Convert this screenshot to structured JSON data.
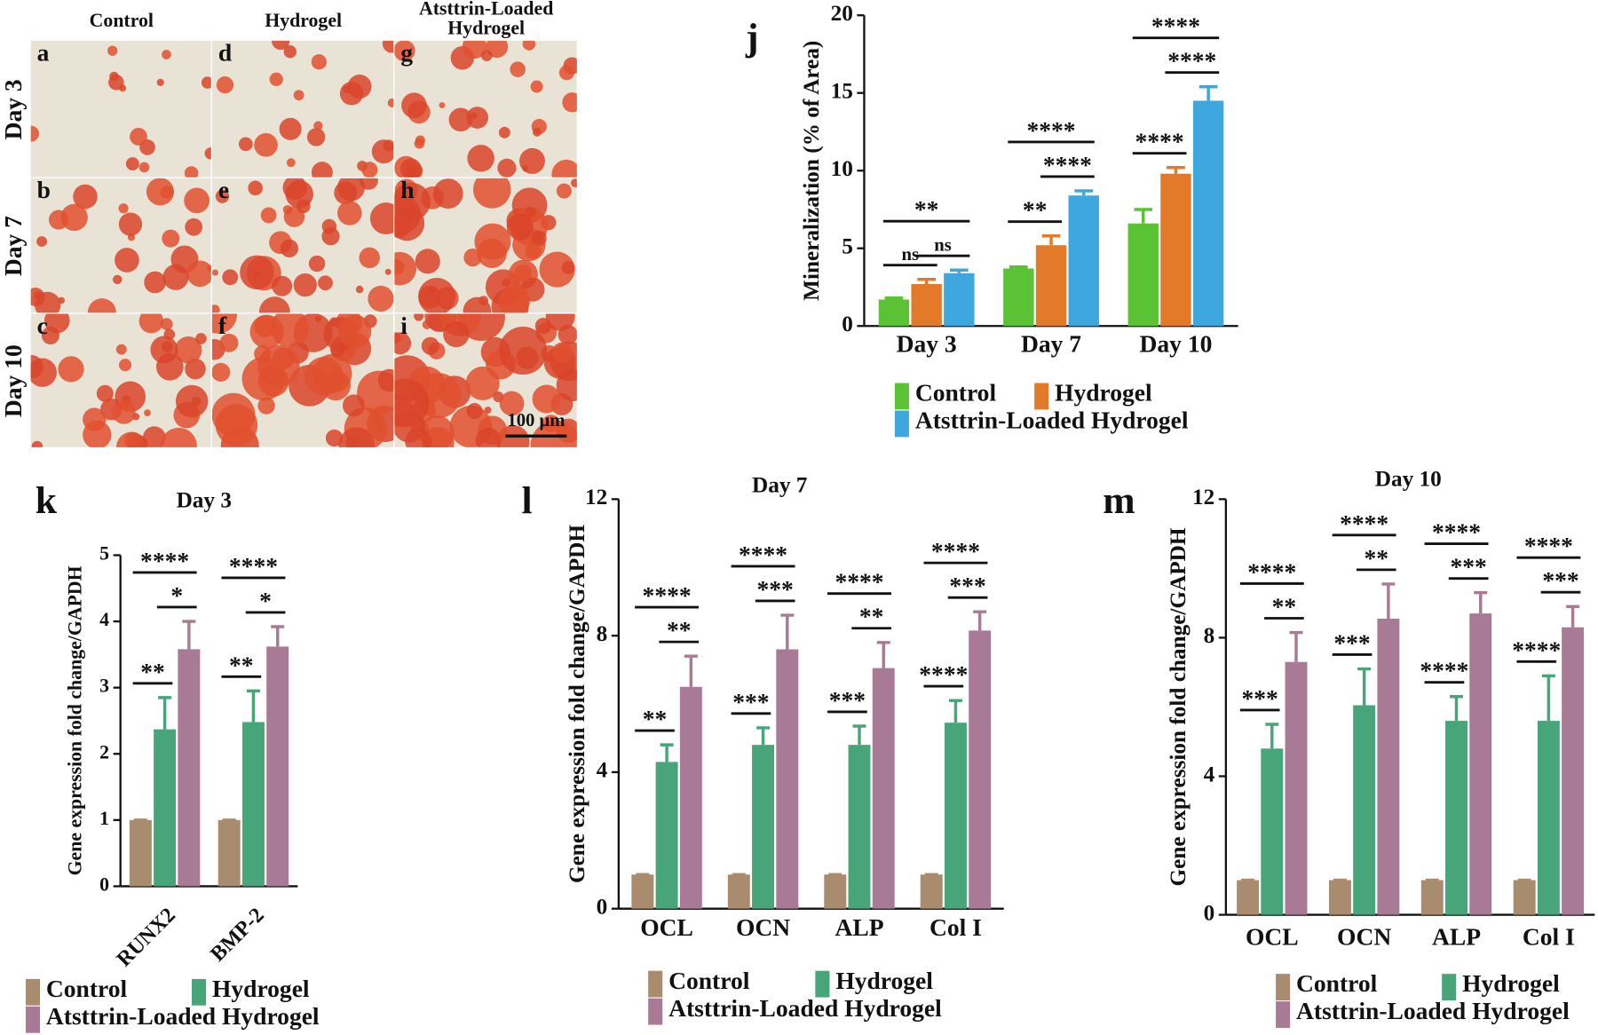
{
  "micrographs": {
    "columns": [
      "Control",
      "Hydrogel",
      "Atsttrin-Loaded Hydrogel"
    ],
    "rows": [
      "Day 3",
      "Day 7",
      "Day 10"
    ],
    "panels": [
      "a",
      "d",
      "g",
      "b",
      "e",
      "h",
      "c",
      "f",
      "i"
    ],
    "scale_bar": "100 μm"
  },
  "chart_data": [
    {
      "type": "bar",
      "panel": "j",
      "ylabel": "Mineralization (% of Area)",
      "categories": [
        "Day 3",
        "Day 7",
        "Day 10"
      ],
      "series": [
        {
          "name": "Control",
          "color": "#5bc236",
          "values": [
            1.7,
            3.7,
            6.6
          ],
          "errors": [
            0.1,
            0.1,
            0.9
          ]
        },
        {
          "name": "Hydrogel",
          "color": "#e27a2a",
          "values": [
            2.7,
            5.2,
            9.8
          ],
          "errors": [
            0.3,
            0.6,
            0.4
          ]
        },
        {
          "name": "Atsttrin-Loaded Hydrogel",
          "color": "#3ea8de",
          "values": [
            3.4,
            8.4,
            14.5
          ],
          "errors": [
            0.2,
            0.3,
            0.9
          ]
        }
      ],
      "ylim": [
        0,
        20
      ],
      "yticks": [
        0,
        5,
        10,
        15,
        20
      ],
      "annotations": [
        {
          "text": "ns",
          "category": 0,
          "pair": [
            0,
            1
          ]
        },
        {
          "text": "ns",
          "category": 0,
          "pair": [
            1,
            2
          ]
        },
        {
          "text": "**",
          "category": 0,
          "pair": [
            0,
            2
          ]
        },
        {
          "text": "**",
          "category": 1,
          "pair": [
            0,
            1
          ]
        },
        {
          "text": "****",
          "category": 1,
          "pair": [
            1,
            2
          ]
        },
        {
          "text": "****",
          "category": 1,
          "pair": [
            0,
            2
          ]
        },
        {
          "text": "****",
          "category": 2,
          "pair": [
            0,
            1
          ]
        },
        {
          "text": "****",
          "category": 2,
          "pair": [
            1,
            2
          ]
        },
        {
          "text": "****",
          "category": 2,
          "pair": [
            0,
            2
          ]
        }
      ]
    },
    {
      "type": "bar",
      "panel": "k",
      "title": "Day 3",
      "ylabel": "Gene expression fold change/GAPDH",
      "categories": [
        "RUNX2",
        "BMP-2"
      ],
      "series": [
        {
          "name": "Control",
          "color": "#a98b6d",
          "values": [
            1,
            1
          ],
          "errors": [
            0,
            0
          ]
        },
        {
          "name": "Hydrogel",
          "color": "#48a57a",
          "values": [
            2.37,
            2.48
          ],
          "errors": [
            0.48,
            0.47
          ]
        },
        {
          "name": "Atsttrin-Loaded Hydrogel",
          "color": "#a87a95",
          "values": [
            3.58,
            3.62
          ],
          "errors": [
            0.42,
            0.3
          ]
        }
      ],
      "ylim": [
        0,
        5
      ],
      "yticks": [
        0,
        1,
        2,
        3,
        4,
        5
      ],
      "annotations": [
        {
          "text": "**",
          "category": 0,
          "pair": [
            0,
            1
          ]
        },
        {
          "text": "*",
          "category": 0,
          "pair": [
            1,
            2
          ]
        },
        {
          "text": "****",
          "category": 0,
          "pair": [
            0,
            2
          ]
        },
        {
          "text": "**",
          "category": 1,
          "pair": [
            0,
            1
          ]
        },
        {
          "text": "*",
          "category": 1,
          "pair": [
            1,
            2
          ]
        },
        {
          "text": "****",
          "category": 1,
          "pair": [
            0,
            2
          ]
        }
      ]
    },
    {
      "type": "bar",
      "panel": "l",
      "title": "Day 7",
      "ylabel": "Gene expression fold change/GAPDH",
      "categories": [
        "OCL",
        "OCN",
        "ALP",
        "Col I"
      ],
      "series": [
        {
          "name": "Control",
          "color": "#a98b6d",
          "values": [
            1,
            1,
            1,
            1
          ],
          "errors": [
            0,
            0,
            0,
            0
          ]
        },
        {
          "name": "Hydrogel",
          "color": "#48a57a",
          "values": [
            4.3,
            4.8,
            4.8,
            5.45
          ],
          "errors": [
            0.5,
            0.5,
            0.55,
            0.65
          ]
        },
        {
          "name": "Atsttrin-Loaded Hydrogel",
          "color": "#a87a95",
          "values": [
            6.5,
            7.6,
            7.05,
            8.15
          ],
          "errors": [
            0.9,
            1.0,
            0.75,
            0.55
          ]
        }
      ],
      "ylim": [
        0,
        12
      ],
      "yticks": [
        0,
        4,
        8,
        12
      ],
      "annotations": [
        {
          "text": "**",
          "category": 0,
          "pair": [
            0,
            1
          ]
        },
        {
          "text": "**",
          "category": 0,
          "pair": [
            1,
            2
          ]
        },
        {
          "text": "****",
          "category": 0,
          "pair": [
            0,
            2
          ]
        },
        {
          "text": "***",
          "category": 1,
          "pair": [
            0,
            1
          ]
        },
        {
          "text": "***",
          "category": 1,
          "pair": [
            1,
            2
          ]
        },
        {
          "text": "****",
          "category": 1,
          "pair": [
            0,
            2
          ]
        },
        {
          "text": "***",
          "category": 2,
          "pair": [
            0,
            1
          ]
        },
        {
          "text": "**",
          "category": 2,
          "pair": [
            1,
            2
          ]
        },
        {
          "text": "****",
          "category": 2,
          "pair": [
            0,
            2
          ]
        },
        {
          "text": "****",
          "category": 3,
          "pair": [
            0,
            1
          ]
        },
        {
          "text": "***",
          "category": 3,
          "pair": [
            1,
            2
          ]
        },
        {
          "text": "****",
          "category": 3,
          "pair": [
            0,
            2
          ]
        }
      ]
    },
    {
      "type": "bar",
      "panel": "m",
      "title": "Day 10",
      "ylabel": "Gene expression fold change/GAPDH",
      "categories": [
        "OCL",
        "OCN",
        "ALP",
        "Col I"
      ],
      "series": [
        {
          "name": "Control",
          "color": "#a98b6d",
          "values": [
            1,
            1,
            1,
            1
          ],
          "errors": [
            0,
            0,
            0,
            0
          ]
        },
        {
          "name": "Hydrogel",
          "color": "#48a57a",
          "values": [
            4.8,
            6.05,
            5.6,
            5.6
          ],
          "errors": [
            0.7,
            1.05,
            0.7,
            1.3
          ]
        },
        {
          "name": "Atsttrin-Loaded Hydrogel",
          "color": "#a87a95",
          "values": [
            7.3,
            8.55,
            8.7,
            8.3
          ],
          "errors": [
            0.85,
            1.0,
            0.6,
            0.6
          ]
        }
      ],
      "ylim": [
        0,
        12
      ],
      "yticks": [
        0,
        4,
        8,
        12
      ],
      "annotations": [
        {
          "text": "***",
          "category": 0,
          "pair": [
            0,
            1
          ]
        },
        {
          "text": "**",
          "category": 0,
          "pair": [
            1,
            2
          ]
        },
        {
          "text": "****",
          "category": 0,
          "pair": [
            0,
            2
          ]
        },
        {
          "text": "***",
          "category": 1,
          "pair": [
            0,
            1
          ]
        },
        {
          "text": "**",
          "category": 1,
          "pair": [
            1,
            2
          ]
        },
        {
          "text": "****",
          "category": 1,
          "pair": [
            0,
            2
          ]
        },
        {
          "text": "****",
          "category": 2,
          "pair": [
            0,
            1
          ]
        },
        {
          "text": "***",
          "category": 2,
          "pair": [
            1,
            2
          ]
        },
        {
          "text": "****",
          "category": 2,
          "pair": [
            0,
            2
          ]
        },
        {
          "text": "****",
          "category": 3,
          "pair": [
            0,
            1
          ]
        },
        {
          "text": "***",
          "category": 3,
          "pair": [
            1,
            2
          ]
        },
        {
          "text": "****",
          "category": 3,
          "pair": [
            0,
            2
          ]
        }
      ]
    }
  ]
}
